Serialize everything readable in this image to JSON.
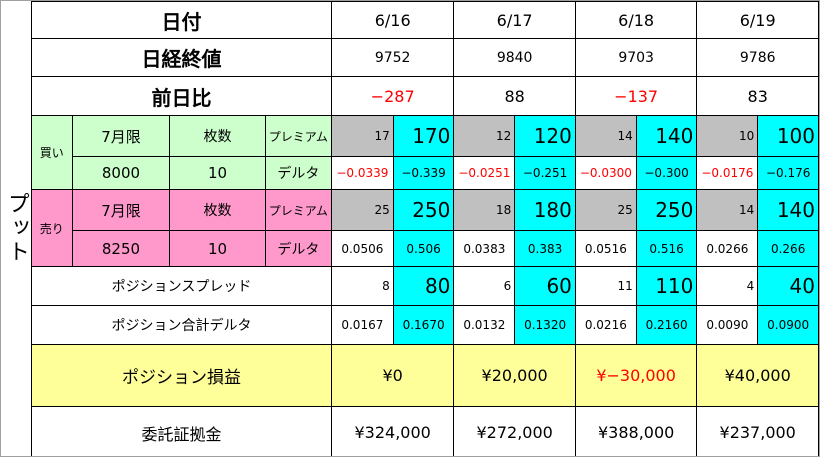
{
  "side_label": "プット",
  "header": {
    "date_label": "日付",
    "close_label": "日経終値",
    "change_label": "前日比"
  },
  "dates": [
    "6/16",
    "6/17",
    "6/18",
    "6/19"
  ],
  "closes": [
    "9752",
    "9840",
    "9703",
    "9786"
  ],
  "changes": [
    {
      "v": "−287",
      "neg": true
    },
    {
      "v": "88",
      "neg": false
    },
    {
      "v": "−137",
      "neg": true
    },
    {
      "v": "83",
      "neg": false
    }
  ],
  "buy": {
    "label": "買い",
    "expiry": "7月限",
    "qty_label": "枚数",
    "premium_label": "プレミアム",
    "strike": "8000",
    "qty": "10",
    "delta_label": "デルタ",
    "premium": [
      [
        "17",
        "170"
      ],
      [
        "12",
        "120"
      ],
      [
        "14",
        "140"
      ],
      [
        "10",
        "100"
      ]
    ],
    "delta": [
      [
        "−0.0339",
        "−0.339"
      ],
      [
        "−0.0251",
        "−0.251"
      ],
      [
        "−0.0300",
        "−0.300"
      ],
      [
        "−0.0176",
        "−0.176"
      ]
    ]
  },
  "sell": {
    "label": "売り",
    "expiry": "7月限",
    "qty_label": "枚数",
    "premium_label": "プレミアム",
    "strike": "8250",
    "qty": "10",
    "delta_label": "デルタ",
    "premium": [
      [
        "25",
        "250"
      ],
      [
        "18",
        "180"
      ],
      [
        "25",
        "250"
      ],
      [
        "14",
        "140"
      ]
    ],
    "delta": [
      [
        "0.0506",
        "0.506"
      ],
      [
        "0.0383",
        "0.383"
      ],
      [
        "0.0516",
        "0.516"
      ],
      [
        "0.0266",
        "0.266"
      ]
    ]
  },
  "spread": {
    "label": "ポジションスプレッド",
    "values": [
      [
        "8",
        "80"
      ],
      [
        "6",
        "60"
      ],
      [
        "11",
        "110"
      ],
      [
        "4",
        "40"
      ]
    ]
  },
  "total_delta": {
    "label": "ポジション合計デルタ",
    "values": [
      [
        "0.0167",
        "0.1670"
      ],
      [
        "0.0132",
        "0.1320"
      ],
      [
        "0.0216",
        "0.2160"
      ],
      [
        "0.0090",
        "0.0900"
      ]
    ]
  },
  "pnl": {
    "label": "ポジション損益",
    "values": [
      {
        "v": "¥0",
        "neg": false
      },
      {
        "v": "¥20,000",
        "neg": false
      },
      {
        "v": "¥−30,000",
        "neg": true
      },
      {
        "v": "¥40,000",
        "neg": false
      }
    ]
  },
  "margin": {
    "label": "委託証拠金",
    "values": [
      "¥324,000",
      "¥272,000",
      "¥388,000",
      "¥237,000"
    ]
  },
  "colors": {
    "buy": "#ccffcc",
    "sell": "#ff99cc",
    "cyan": "#00ffff",
    "gray": "#c0c0c0",
    "yellow": "#ffff99",
    "negative": "#ff0000"
  }
}
